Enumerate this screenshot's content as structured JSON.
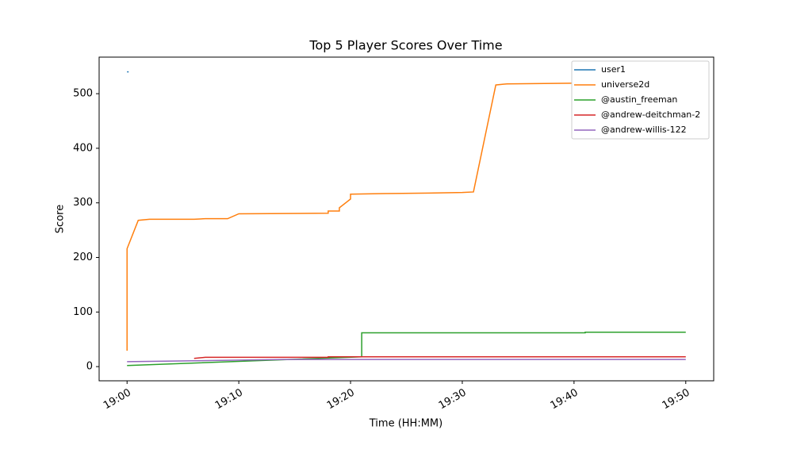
{
  "chart_data": {
    "type": "line",
    "title": "Top 5 Player Scores Over Time",
    "x_label": "Time (HH:MM)",
    "y_label": "Score",
    "xlim": [
      "18:57:30",
      "19:52:30"
    ],
    "xticks": [
      "19:00",
      "19:10",
      "19:20",
      "19:30",
      "19:40",
      "19:50"
    ],
    "ylim": [
      -26,
      567
    ],
    "yticks": [
      0,
      100,
      200,
      300,
      400,
      500
    ],
    "legend": "upper right",
    "series": [
      {
        "name": "user1",
        "color": "#1f77b4",
        "x": [
          "19:00"
        ],
        "values": [
          540
        ]
      },
      {
        "name": "universe2d",
        "color": "#ff7f0e",
        "x": [
          "19:00",
          "19:00",
          "19:00",
          "19:01",
          "19:02",
          "19:06",
          "19:07",
          "19:09",
          "19:10",
          "19:18",
          "19:18",
          "19:19",
          "19:19",
          "19:20",
          "19:20",
          "19:23",
          "19:27",
          "19:30",
          "19:31",
          "19:33",
          "19:34",
          "19:39",
          "19:50"
        ],
        "values": [
          29,
          75,
          216,
          268,
          270,
          270,
          271,
          271,
          280,
          281,
          285,
          285,
          291,
          307,
          316,
          317,
          318,
          319,
          320,
          516,
          518,
          519,
          521
        ]
      },
      {
        "name": "@austin_freeman",
        "color": "#2ca02c",
        "x": [
          "19:00",
          "19:21",
          "19:21",
          "19:41",
          "19:41",
          "19:50"
        ],
        "values": [
          2,
          18,
          62,
          62,
          63,
          63
        ]
      },
      {
        "name": "@andrew-deitchman-2",
        "color": "#d62728",
        "x": [
          "19:06",
          "19:07",
          "19:18",
          "19:18",
          "19:50"
        ],
        "values": [
          15,
          17,
          17,
          18,
          18
        ]
      },
      {
        "name": "@andrew-willis-122",
        "color": "#9467bd",
        "x": [
          "19:00",
          "19:14",
          "19:50"
        ],
        "values": [
          9,
          13,
          13
        ]
      }
    ]
  }
}
